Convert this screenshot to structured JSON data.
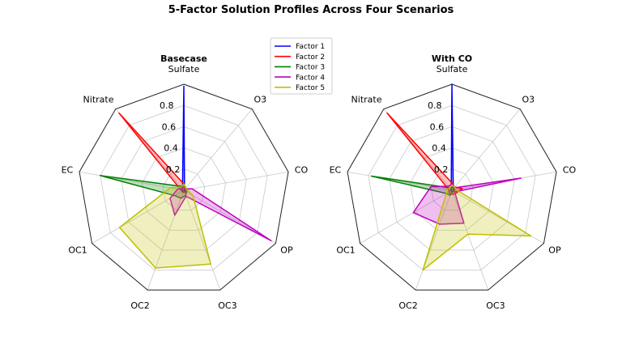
{
  "chart_data": {
    "type": "radar",
    "title": "5-Factor Solution Profiles Across Four Scenarios",
    "axes": [
      "Sulfate",
      "O3",
      "CO",
      "OP",
      "OC3",
      "OC2",
      "OC1",
      "EC",
      "Nitrate"
    ],
    "rticks": [
      "0.2",
      "0.4",
      "0.6",
      "0.8"
    ],
    "rticks_values": [
      0.2,
      0.4,
      0.6,
      0.8
    ],
    "rlim": [
      0,
      1.0
    ],
    "legend": {
      "placement": "top-center",
      "entries": [
        {
          "name": "Factor 1",
          "color": "#0000ff"
        },
        {
          "name": "Factor 2",
          "color": "#ff0000"
        },
        {
          "name": "Factor 3",
          "color": "#008000"
        },
        {
          "name": "Factor 4",
          "color": "#bf00bf"
        },
        {
          "name": "Factor 5",
          "color": "#bfbf00"
        }
      ]
    },
    "panels": [
      {
        "title": "Basecase",
        "series": [
          {
            "name": "Factor 1",
            "values": [
              0.98,
              0.01,
              0.01,
              0.01,
              0.02,
              0.02,
              0.01,
              0.02,
              0.02
            ]
          },
          {
            "name": "Factor 2",
            "values": [
              0.06,
              0.03,
              0.02,
              0.03,
              0.02,
              0.02,
              0.02,
              0.03,
              0.95
            ]
          },
          {
            "name": "Factor 3",
            "values": [
              0.05,
              0.02,
              0.03,
              0.03,
              0.05,
              0.08,
              0.1,
              0.8,
              0.05
            ]
          },
          {
            "name": "Factor 4",
            "values": [
              0.02,
              0.02,
              0.08,
              0.95,
              0.06,
              0.25,
              0.15,
              0.06,
              0.03
            ]
          },
          {
            "name": "Factor 5",
            "values": [
              0.06,
              0.03,
              0.03,
              0.1,
              0.74,
              0.78,
              0.7,
              0.13,
              0.04
            ]
          }
        ]
      },
      {
        "title": "With CO",
        "series": [
          {
            "name": "Factor 1",
            "values": [
              1.0,
              0.02,
              0.02,
              0.02,
              0.01,
              0.01,
              0.01,
              0.01,
              0.01
            ]
          },
          {
            "name": "Factor 2",
            "values": [
              0.07,
              0.04,
              0.1,
              0.05,
              0.04,
              0.04,
              0.03,
              0.03,
              0.95
            ]
          },
          {
            "name": "Factor 3",
            "values": [
              0.03,
              0.02,
              0.03,
              0.02,
              0.02,
              0.05,
              0.06,
              0.77,
              0.03
            ]
          },
          {
            "name": "Factor 4",
            "values": [
              0.06,
              0.03,
              0.66,
              0.03,
              0.33,
              0.34,
              0.42,
              0.2,
              0.05
            ]
          },
          {
            "name": "Factor 5",
            "values": [
              0.05,
              0.04,
              0.04,
              0.86,
              0.44,
              0.8,
              0.06,
              0.05,
              0.03
            ]
          }
        ]
      }
    ]
  }
}
